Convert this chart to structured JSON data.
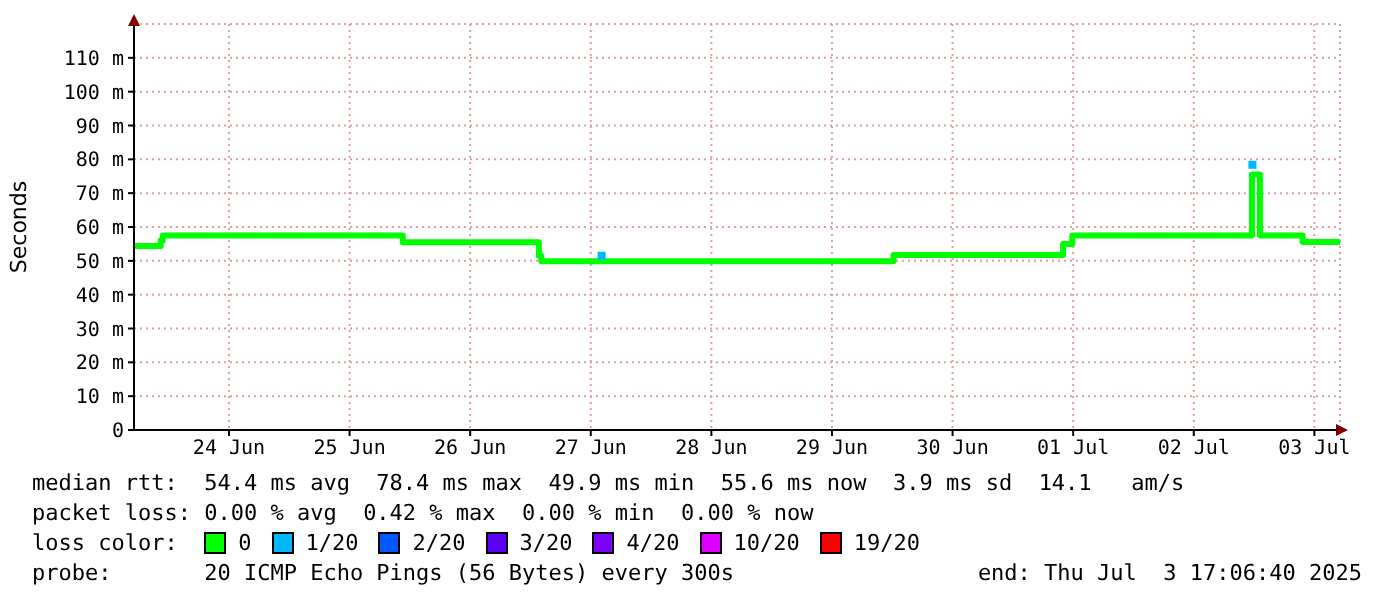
{
  "chart_data": {
    "type": "step",
    "ylabel": "Seconds",
    "legend_title": "loss color:",
    "legend": "bottom",
    "grid": true,
    "xlim": [
      "2025-06-23T17:06",
      "2025-07-03T17:06"
    ],
    "xticks": [
      {
        "value": "2025-06-24T12:00",
        "label": "24 Jun"
      },
      {
        "value": "2025-06-25T12:00",
        "label": "25 Jun"
      },
      {
        "value": "2025-06-26T12:00",
        "label": "26 Jun"
      },
      {
        "value": "2025-06-27T12:00",
        "label": "27 Jun"
      },
      {
        "value": "2025-06-28T12:00",
        "label": "28 Jun"
      },
      {
        "value": "2025-06-29T12:00",
        "label": "29 Jun"
      },
      {
        "value": "2025-06-30T12:00",
        "label": "30 Jun"
      },
      {
        "value": "2025-07-01T12:00",
        "label": "01 Jul"
      },
      {
        "value": "2025-07-02T12:00",
        "label": "02 Jul"
      },
      {
        "value": "2025-07-03T12:00",
        "label": "03 Jul"
      }
    ],
    "ylim": [
      0,
      120
    ],
    "yticks": [
      0,
      {
        "value": 10,
        "label": "10 m"
      },
      {
        "value": 20,
        "label": "20 m"
      },
      {
        "value": 30,
        "label": "30 m"
      },
      {
        "value": 40,
        "label": "40 m"
      },
      {
        "value": 50,
        "label": "50 m"
      },
      {
        "value": 60,
        "label": "60 m"
      },
      {
        "value": 70,
        "label": "70 m"
      },
      {
        "value": 80,
        "label": "80 m"
      },
      {
        "value": 90,
        "label": "90 m"
      },
      {
        "value": 100,
        "label": "100 m"
      },
      {
        "value": 110,
        "label": "110 m"
      }
    ],
    "series": [
      {
        "name": "0",
        "color": "#00ff00",
        "x": [
          "2025-06-23T17:06",
          "2025-06-23T22:25",
          "2025-06-23T22:50",
          "2025-06-25T22:35",
          "2025-06-27T01:40",
          "2025-06-27T02:10",
          "2025-06-30T00:15",
          "2025-07-01T10:00",
          "2025-07-01T11:50",
          "2025-07-02T23:35",
          "2025-07-03T01:10",
          "2025-07-03T09:40",
          "2025-07-03T17:06"
        ],
        "values": [
          54.4,
          56,
          57.5,
          55.5,
          51.5,
          49.9,
          51.7,
          55,
          57.5,
          75.5,
          57.5,
          55.6,
          55.6
        ]
      },
      {
        "name": "1/20",
        "color": "#00b8ff",
        "type": "scatter",
        "marker": "square",
        "x": [
          "2025-06-27T14:10",
          "2025-07-02T23:40"
        ],
        "values": [
          51.5,
          78.4
        ]
      },
      {
        "name": "2/20",
        "color": "#0059ff"
      },
      {
        "name": "3/20",
        "color": "#5e00ff"
      },
      {
        "name": "4/20",
        "color": "#7e00ff"
      },
      {
        "name": "10/20",
        "color": "#dd00ff"
      },
      {
        "name": "19/20",
        "color": "#ff0000"
      }
    ],
    "annotations": [
      "median rtt:  54.4 ms avg  78.4 ms max  49.9 ms min  55.6 ms now  3.9 ms sd  14.1   am/s",
      "packet loss: 0.00 % avg  0.42 % max  0.00 % min  0.00 % now",
      "probe:       20 ICMP Echo Pings (56 Bytes) every 300s",
      "end: Thu Jul  3 17:06:40 2025"
    ]
  }
}
